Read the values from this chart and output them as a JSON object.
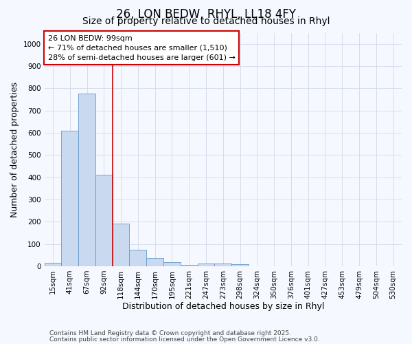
{
  "title": "26, LON BEDW, RHYL, LL18 4FY",
  "subtitle": "Size of property relative to detached houses in Rhyl",
  "xlabel": "Distribution of detached houses by size in Rhyl",
  "ylabel": "Number of detached properties",
  "categories": [
    "15sqm",
    "41sqm",
    "67sqm",
    "92sqm",
    "118sqm",
    "144sqm",
    "170sqm",
    "195sqm",
    "221sqm",
    "247sqm",
    "273sqm",
    "298sqm",
    "324sqm",
    "350sqm",
    "376sqm",
    "401sqm",
    "427sqm",
    "453sqm",
    "479sqm",
    "504sqm",
    "530sqm"
  ],
  "values": [
    15,
    608,
    775,
    410,
    193,
    75,
    38,
    18,
    5,
    12,
    12,
    8,
    0,
    0,
    0,
    0,
    0,
    0,
    0,
    0,
    0
  ],
  "bar_color": "#c9d9f0",
  "bar_edge_color": "#6699cc",
  "property_line_x": 3.5,
  "annotation_title": "26 LON BEDW: 99sqm",
  "annotation_line1": "← 71% of detached houses are smaller (1,510)",
  "annotation_line2": "28% of semi-detached houses are larger (601) →",
  "annotation_box_facecolor": "#ffffff",
  "annotation_box_edgecolor": "#cc0000",
  "red_line_color": "#cc0000",
  "ylim": [
    0,
    1050
  ],
  "yticks": [
    0,
    100,
    200,
    300,
    400,
    500,
    600,
    700,
    800,
    900,
    1000
  ],
  "footnote1": "Contains HM Land Registry data © Crown copyright and database right 2025.",
  "footnote2": "Contains public sector information licensed under the Open Government Licence v3.0.",
  "bg_color": "#f5f8ff",
  "grid_color": "#d0d8e8",
  "title_fontsize": 12,
  "subtitle_fontsize": 10,
  "axis_label_fontsize": 9,
  "tick_fontsize": 7.5,
  "annotation_fontsize": 8,
  "footnote_fontsize": 6.5
}
